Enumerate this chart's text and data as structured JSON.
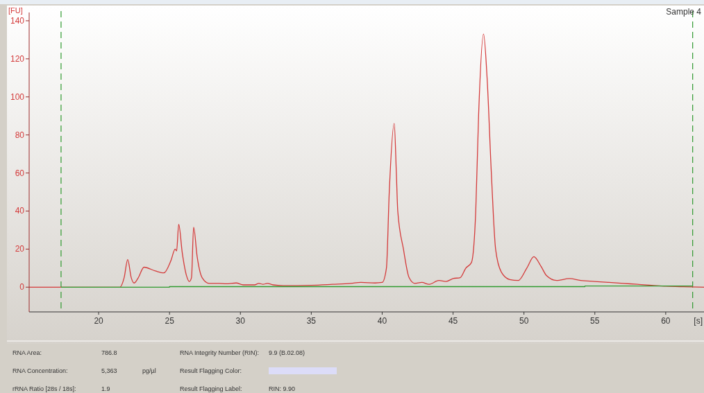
{
  "chart_data": {
    "type": "line",
    "title": "Sample 4",
    "xlabel": "[s]",
    "ylabel": "[FU]",
    "xlim": [
      15.1,
      62.7
    ],
    "ylim": [
      -13,
      148
    ],
    "xticks": [
      20,
      25,
      30,
      35,
      40,
      45,
      50,
      55,
      60
    ],
    "yticks": [
      0,
      20,
      40,
      60,
      80,
      100,
      120,
      140
    ],
    "grid": false,
    "line_style": "solid",
    "marker": "none",
    "series": [
      {
        "color": "#d43a3a",
        "x": [
          15.1,
          21.5,
          21.8,
          22.05,
          22.3,
          22.5,
          22.8,
          23.2,
          24.0,
          24.6,
          25.1,
          25.4,
          25.5,
          25.65,
          25.9,
          26.2,
          26.4,
          26.55,
          26.7,
          26.95,
          27.3,
          27.8,
          28.5,
          29.0,
          29.7,
          30.2,
          31.0,
          31.3,
          31.6,
          31.9,
          32.3,
          33.0,
          35.0,
          36.5,
          37.8,
          38.5,
          39.5,
          40.0,
          40.3,
          40.5,
          40.85,
          41.0,
          41.1,
          41.5,
          41.9,
          42.3,
          42.8,
          43.3,
          44.0,
          44.5,
          45.0,
          45.5,
          45.9,
          46.3,
          46.6,
          46.8,
          47.15,
          47.4,
          47.7,
          48.0,
          48.4,
          49.0,
          49.6,
          50.2,
          50.7,
          51.2,
          51.6,
          52.3,
          53.2,
          54.0,
          55.0,
          56.0,
          57.0,
          58.0,
          59.0,
          60.0,
          61.0,
          62.7
        ],
        "values": [
          0,
          0,
          5,
          14.5,
          5,
          2.2,
          5,
          10.5,
          8.5,
          7.5,
          14,
          20,
          19,
          33,
          18,
          6,
          3,
          5,
          31.5,
          16,
          5,
          2,
          2,
          1.8,
          2.2,
          1.2,
          1.2,
          2,
          1.5,
          2,
          1.2,
          0.8,
          1,
          1.5,
          2,
          2.5,
          2.2,
          2.5,
          10,
          50,
          86,
          60,
          40,
          20,
          5,
          2,
          2.5,
          1.5,
          3.5,
          3,
          4.5,
          5,
          10,
          13,
          40,
          90,
          133,
          110,
          60,
          20,
          8,
          4,
          3.5,
          10,
          16,
          11,
          6,
          3.5,
          4.5,
          3.5,
          3,
          2.5,
          2,
          1.5,
          1,
          0.5,
          0.3,
          0
        ]
      },
      {
        "color": "#2e9a2e",
        "x": [
          17.35,
          25.0,
          25.0,
          54.3,
          54.3,
          61.9
        ],
        "values": [
          0,
          0,
          0.3,
          0.3,
          0.6,
          0.6
        ]
      }
    ],
    "ref_lines": [
      {
        "axis": "x",
        "value": 17.35,
        "color": "#2e9a2e",
        "line_style": "dashed"
      },
      {
        "axis": "x",
        "value": 61.9,
        "color": "#2e9a2e",
        "line_style": "dashed"
      }
    ],
    "annotations": [
      "RNA Area:",
      "786.8",
      "RNA Integrity Number (RIN):",
      "9.9  (B.02.08)",
      "RNA Concentration:",
      "5,363",
      "pg/µl",
      "Result Flagging Color:",
      "rRNA Ratio [28s / 18s]:",
      "1.9",
      "Result Flagging Label:",
      "RIN: 9.90"
    ]
  }
}
